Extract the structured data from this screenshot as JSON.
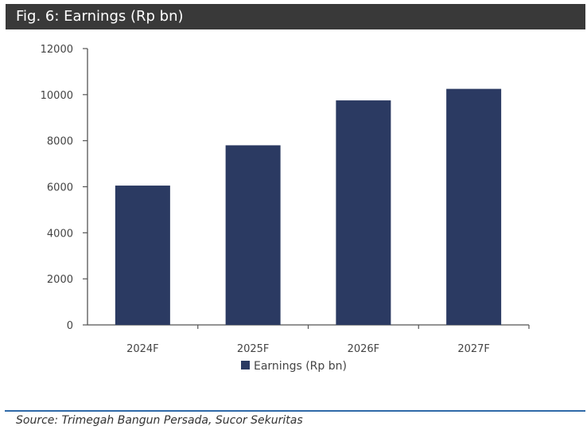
{
  "figure": {
    "title": "Fig. 6: Earnings (Rp bn)",
    "source": "Source: Trimegah Bangun Persada, Sucor Sekuritas"
  },
  "colors": {
    "bar": "#2b3a62",
    "title_bg": "#393939",
    "footer_line": "#2f6aa8"
  },
  "chart_data": {
    "type": "bar",
    "categories": [
      "2024F",
      "2025F",
      "2026F",
      "2027F"
    ],
    "series": [
      {
        "name": "Earnings (Rp bn)",
        "values": [
          6050,
          7800,
          9750,
          10250
        ]
      }
    ],
    "ylim": [
      0,
      12000
    ],
    "yticks": [
      0,
      2000,
      4000,
      6000,
      8000,
      10000,
      12000
    ],
    "grid": false,
    "legend": "bottom"
  }
}
